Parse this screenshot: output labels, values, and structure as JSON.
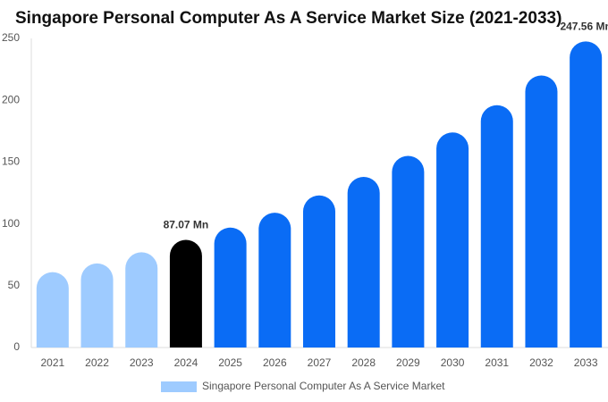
{
  "chart_data": {
    "type": "bar",
    "title": "Singapore Personal Computer As A Service Market Size (2021-2033)",
    "categories": [
      "2021",
      "2022",
      "2023",
      "2024",
      "2025",
      "2026",
      "2027",
      "2028",
      "2029",
      "2030",
      "2031",
      "2032",
      "2033"
    ],
    "series": [
      {
        "name": "Singapore Personal Computer As A Service Market",
        "color": "#9ecbff",
        "values": [
          61,
          68,
          77,
          87.07,
          97,
          109,
          123,
          138,
          155,
          174,
          196,
          220,
          247.56
        ],
        "value_labels": [
          null,
          null,
          null,
          "87.07 Mn",
          null,
          null,
          null,
          null,
          null,
          null,
          null,
          null,
          "247.56 Mn"
        ],
        "colors": [
          "#9ecbff",
          "#9ecbff",
          "#9ecbff",
          "#000000",
          "#0a6cf5",
          "#0a6cf5",
          "#0a6cf5",
          "#0a6cf5",
          "#0a6cf5",
          "#0a6cf5",
          "#0a6cf5",
          "#0a6cf5",
          "#0a6cf5"
        ]
      }
    ],
    "ylim": [
      0,
      250
    ],
    "yticks": [
      0,
      50,
      100,
      150,
      200,
      250
    ],
    "grid": false
  }
}
